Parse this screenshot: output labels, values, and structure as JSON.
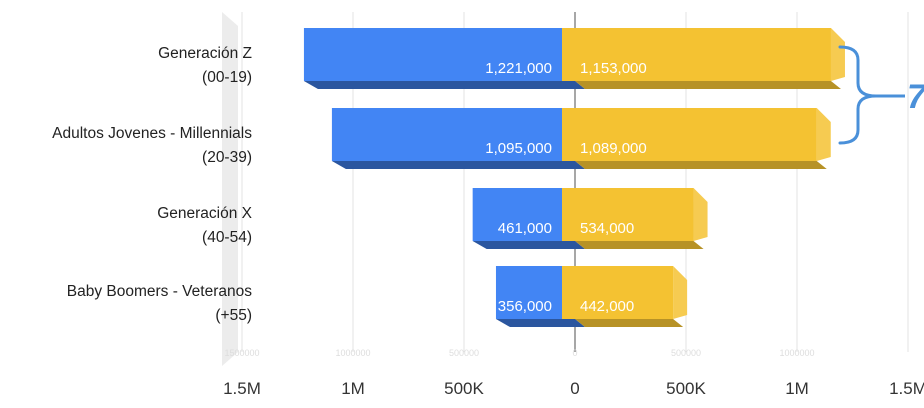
{
  "chart_data": {
    "type": "bar",
    "orientation": "horizontal",
    "style": "3d-butterfly",
    "title": "",
    "xlabel": "",
    "ylabel": "",
    "xlim": [
      -1500000,
      1500000
    ],
    "grid": true,
    "legend": "none",
    "categories": [
      [
        "Generación Z",
        "(00-19)"
      ],
      [
        "Adultos Jovenes - Millennials",
        "(20-39)"
      ],
      [
        "Generación X",
        "(40-54)"
      ],
      [
        "Baby Boomers - Veteranos",
        "(+55)"
      ]
    ],
    "series": [
      {
        "color": "#4285f4",
        "side": "left",
        "values": [
          1221000,
          1095000,
          461000,
          356000
        ],
        "labels": [
          "1,221,000",
          "1,095,000",
          "461,000",
          "356,000"
        ]
      },
      {
        "color": "#f4c232",
        "side": "right",
        "values": [
          1153000,
          1089000,
          534000,
          442000
        ],
        "labels": [
          "1,153,000",
          "1,089,000",
          "534,000",
          "442,000"
        ]
      }
    ],
    "x_ticks": [
      "1.5M",
      "1M",
      "500K",
      "0",
      "500K",
      "1M",
      "1.5M"
    ],
    "x_tick_values": [
      -1500000,
      -1000000,
      -500000,
      0,
      500000,
      1000000,
      1500000
    ],
    "faint_ticks": [
      "1500000",
      "1000000",
      "500000",
      "0",
      "500000",
      "1000000"
    ],
    "annotation": {
      "text": "7",
      "color": "#4a90d9"
    }
  }
}
